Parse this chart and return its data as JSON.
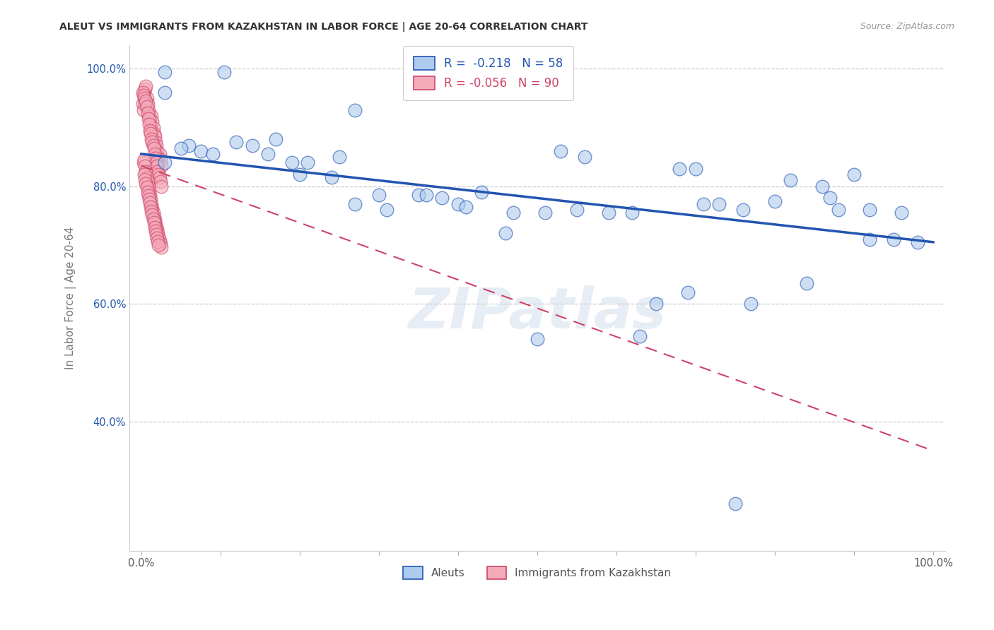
{
  "title": "ALEUT VS IMMIGRANTS FROM KAZAKHSTAN IN LABOR FORCE | AGE 20-64 CORRELATION CHART",
  "source": "Source: ZipAtlas.com",
  "ylabel": "In Labor Force | Age 20-64",
  "legend_label1": "Aleuts",
  "legend_label2": "Immigrants from Kazakhstan",
  "r1": "-0.218",
  "n1": "58",
  "r2": "-0.056",
  "n2": "90",
  "color1": "#aecbee",
  "color2": "#f5aaba",
  "line_color1": "#2255b0",
  "line_color2": "#cc4466",
  "watermark": "ZIPatlas",
  "blue_x": [
    0.03,
    0.105,
    0.03,
    0.17,
    0.27,
    0.53,
    0.56,
    0.68,
    0.7,
    0.76,
    0.82,
    0.86,
    0.87,
    0.9,
    0.92,
    0.95,
    0.96,
    0.98,
    0.03,
    0.06,
    0.075,
    0.09,
    0.14,
    0.19,
    0.21,
    0.24,
    0.27,
    0.3,
    0.35,
    0.38,
    0.4,
    0.43,
    0.47,
    0.51,
    0.55,
    0.59,
    0.62,
    0.65,
    0.69,
    0.73,
    0.77,
    0.8,
    0.84,
    0.88,
    0.92,
    0.05,
    0.12,
    0.16,
    0.2,
    0.25,
    0.31,
    0.36,
    0.41,
    0.46,
    0.5,
    0.63,
    0.71,
    0.75
  ],
  "blue_y": [
    0.995,
    0.995,
    0.96,
    0.88,
    0.93,
    0.86,
    0.85,
    0.83,
    0.83,
    0.76,
    0.81,
    0.8,
    0.78,
    0.82,
    0.71,
    0.71,
    0.755,
    0.705,
    0.84,
    0.87,
    0.86,
    0.855,
    0.87,
    0.84,
    0.84,
    0.815,
    0.77,
    0.785,
    0.785,
    0.78,
    0.77,
    0.79,
    0.755,
    0.755,
    0.76,
    0.755,
    0.755,
    0.6,
    0.62,
    0.77,
    0.6,
    0.775,
    0.635,
    0.76,
    0.76,
    0.865,
    0.875,
    0.855,
    0.82,
    0.85,
    0.76,
    0.785,
    0.765,
    0.72,
    0.54,
    0.545,
    0.77,
    0.26
  ],
  "pink_x": [
    0.002,
    0.003,
    0.004,
    0.005,
    0.006,
    0.007,
    0.008,
    0.009,
    0.01,
    0.011,
    0.012,
    0.013,
    0.014,
    0.015,
    0.016,
    0.017,
    0.018,
    0.019,
    0.02,
    0.021,
    0.022,
    0.023,
    0.024,
    0.025,
    0.002,
    0.003,
    0.004,
    0.005,
    0.006,
    0.007,
    0.008,
    0.009,
    0.01,
    0.011,
    0.012,
    0.013,
    0.014,
    0.015,
    0.016,
    0.017,
    0.018,
    0.019,
    0.02,
    0.021,
    0.022,
    0.023,
    0.024,
    0.025,
    0.003,
    0.004,
    0.005,
    0.006,
    0.007,
    0.008,
    0.009,
    0.01,
    0.011,
    0.012,
    0.013,
    0.014,
    0.015,
    0.016,
    0.017,
    0.018,
    0.019,
    0.02,
    0.021,
    0.022,
    0.023,
    0.024,
    0.025,
    0.004,
    0.005,
    0.006,
    0.007,
    0.008,
    0.009,
    0.01,
    0.011,
    0.012,
    0.013,
    0.014,
    0.015,
    0.016,
    0.017,
    0.018,
    0.019,
    0.02,
    0.021,
    0.022
  ],
  "pink_y": [
    0.94,
    0.93,
    0.96,
    0.965,
    0.97,
    0.95,
    0.94,
    0.93,
    0.92,
    0.915,
    0.9,
    0.92,
    0.91,
    0.9,
    0.89,
    0.885,
    0.875,
    0.87,
    0.86,
    0.85,
    0.84,
    0.855,
    0.845,
    0.835,
    0.96,
    0.955,
    0.95,
    0.94,
    0.945,
    0.935,
    0.925,
    0.915,
    0.905,
    0.895,
    0.89,
    0.88,
    0.875,
    0.87,
    0.865,
    0.855,
    0.848,
    0.84,
    0.835,
    0.825,
    0.82,
    0.815,
    0.808,
    0.8,
    0.84,
    0.845,
    0.835,
    0.825,
    0.815,
    0.808,
    0.8,
    0.792,
    0.785,
    0.778,
    0.77,
    0.762,
    0.755,
    0.748,
    0.742,
    0.736,
    0.73,
    0.726,
    0.72,
    0.714,
    0.708,
    0.702,
    0.696,
    0.82,
    0.812,
    0.805,
    0.798,
    0.79,
    0.784,
    0.778,
    0.772,
    0.765,
    0.758,
    0.752,
    0.745,
    0.738,
    0.73,
    0.724,
    0.718,
    0.712,
    0.706,
    0.7
  ],
  "blue_trend_start_y": 0.855,
  "blue_trend_end_y": 0.705,
  "pink_trend_start_y": 0.835,
  "pink_trend_end_y": 0.35,
  "ylim_min": 0.18,
  "ylim_max": 1.04,
  "xlim_min": -0.015,
  "xlim_max": 1.015
}
